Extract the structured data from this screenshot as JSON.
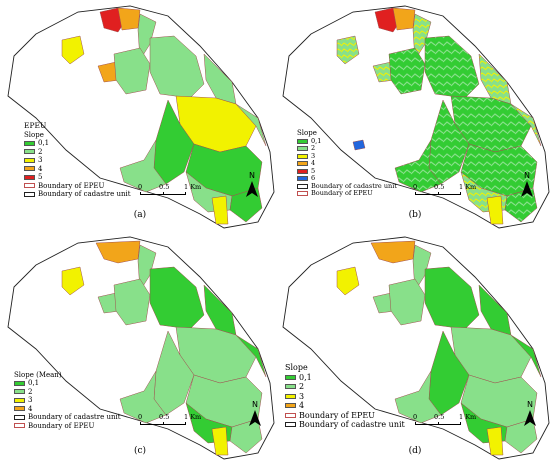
{
  "panels": [
    {
      "id": "a",
      "label": "(a)",
      "legend": {
        "title": "EPEU",
        "subtitle": "Slope",
        "classes": [
          {
            "label": "0,1",
            "color": "#33cc33"
          },
          {
            "label": "2",
            "color": "#88e08a"
          },
          {
            "label": "3",
            "color": "#f2f200"
          },
          {
            "label": "4",
            "color": "#f2a51a"
          },
          {
            "label": "5",
            "color": "#e02020"
          }
        ],
        "boundaries": [
          {
            "label": "Boundary of EPEU",
            "color": "#c05050"
          },
          {
            "label": "Boundary of cadastre unit",
            "color": "#222222"
          }
        ]
      },
      "scale": {
        "zero": "0",
        "half": "0.5",
        "end": "1 Km"
      },
      "north": "N"
    },
    {
      "id": "b",
      "label": "(b)",
      "legend": {
        "title": "",
        "subtitle": "Slope",
        "classes": [
          {
            "label": "0,1",
            "color": "#33cc33"
          },
          {
            "label": "2",
            "color": "#88e08a"
          },
          {
            "label": "3",
            "color": "#f2f200"
          },
          {
            "label": "4",
            "color": "#f2a51a"
          },
          {
            "label": "5",
            "color": "#e02020"
          },
          {
            "label": "6",
            "color": "#2266dd"
          }
        ],
        "boundaries": [
          {
            "label": "Boundary of cadastre unit",
            "color": "#222222"
          },
          {
            "label": "Boundary of EPEU",
            "color": "#c05050"
          }
        ]
      },
      "scale": {
        "zero": "0",
        "half": "0.5",
        "end": "1 Km"
      },
      "north": "N"
    },
    {
      "id": "c",
      "label": "(c)",
      "legend": {
        "title": "",
        "subtitle": "Slope (Mean)",
        "classes": [
          {
            "label": "0,1",
            "color": "#33cc33"
          },
          {
            "label": "2",
            "color": "#88e08a"
          },
          {
            "label": "3",
            "color": "#f2f200"
          },
          {
            "label": "4",
            "color": "#f2a51a"
          }
        ],
        "boundaries": [
          {
            "label": "Boundary of cadastre unit",
            "color": "#222222"
          },
          {
            "label": "Boundary of EPEU",
            "color": "#c05050"
          }
        ]
      },
      "scale": {
        "zero": "0",
        "half": "0.5",
        "end": "1 Km"
      },
      "north": "N"
    },
    {
      "id": "d",
      "label": "(d)",
      "legend": {
        "title": "",
        "subtitle": "Slope",
        "classes": [
          {
            "label": "0,1",
            "color": "#33cc33"
          },
          {
            "label": "2",
            "color": "#88e08a"
          },
          {
            "label": "3",
            "color": "#f2f200"
          },
          {
            "label": "4",
            "color": "#f2a51a"
          }
        ],
        "boundaries": [
          {
            "label": "Boundary of EPEU",
            "color": "#c05050"
          },
          {
            "label": "Boundary of cadastre unit",
            "color": "#222222"
          }
        ]
      },
      "scale": {
        "zero": "0",
        "half": "0.5",
        "end": "1 Km"
      },
      "north": "N"
    }
  ]
}
